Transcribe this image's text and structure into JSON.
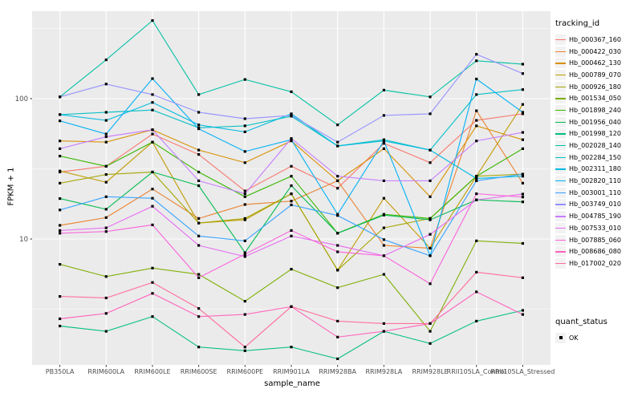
{
  "chart_data": {
    "type": "line",
    "title": "",
    "xlabel": "sample_name",
    "ylabel": "FPKM + 1",
    "y_scale": "log10",
    "y_tick_labels": [
      "100",
      "10"
    ],
    "y_ticks": [
      100,
      10
    ],
    "y_minor_gridlines": [
      316.2,
      31.62,
      3.162
    ],
    "ylim": [
      1.27,
      420
    ],
    "grid": "on",
    "panel_background": "#EBEBEB",
    "gridline_color": "#FFFFFF",
    "axis_text_color": "#4D4D4D",
    "tick_mark_color": "#333333",
    "point_shape": "square",
    "point_color": "#000000",
    "categories": [
      "PB350LA",
      "RRIM600LA",
      "RRIM600LE",
      "RRIM600SE",
      "RRIM600PE",
      "RRIM901LA",
      "RRIM928BA",
      "RRIM928LA",
      "RRIM928LE",
      "RRII105LA_Control",
      "RRII105LA_Stressed"
    ],
    "legend_position": "right",
    "series": [
      {
        "name": "Hb_000367_160",
        "color": "#F8766D",
        "values": [
          30,
          33,
          56,
          40,
          22,
          33,
          23,
          48,
          35,
          70,
          78
        ]
      },
      {
        "name": "Hb_000422_030",
        "color": "#EA8331",
        "values": [
          12.5,
          14.2,
          22.7,
          14,
          17.6,
          18.6,
          26,
          9,
          8.6,
          82,
          25
        ]
      },
      {
        "name": "Hb_000462_130",
        "color": "#D89000",
        "values": [
          50,
          49,
          60,
          43,
          35,
          50,
          26,
          44,
          20,
          64,
          51
        ]
      },
      {
        "name": "Hb_000789_070",
        "color": "#C09B00",
        "values": [
          30.5,
          25.4,
          49,
          13,
          13.7,
          21,
          6,
          19.5,
          8.6,
          28,
          91
        ]
      },
      {
        "name": "Hb_000926_180",
        "color": "#A3A500",
        "values": [
          25,
          28.8,
          30,
          13,
          14,
          21,
          6,
          12,
          14,
          28,
          29
        ]
      },
      {
        "name": "Hb_001534_050",
        "color": "#7CAE00",
        "values": [
          6.6,
          5.4,
          6.2,
          5.6,
          3.6,
          6.1,
          4.5,
          5.6,
          2.2,
          9.7,
          9.3
        ]
      },
      {
        "name": "Hb_001898_240",
        "color": "#39B600",
        "values": [
          39,
          33,
          49,
          30,
          20,
          28,
          11,
          15,
          14,
          28,
          44
        ]
      },
      {
        "name": "Hb_001956_040",
        "color": "#00BB4E",
        "values": [
          19.4,
          16.3,
          30,
          24,
          8,
          24,
          11,
          14.8,
          13.7,
          19,
          18.4
        ]
      },
      {
        "name": "Hb_001998_120",
        "color": "#00BF7D",
        "values": [
          2.4,
          2.2,
          2.8,
          1.7,
          1.6,
          1.7,
          1.4,
          2.2,
          1.8,
          2.6,
          3.1
        ]
      },
      {
        "name": "Hb_002028_140",
        "color": "#00C1A3",
        "values": [
          103,
          189,
          360,
          107,
          137,
          112,
          65,
          115,
          103,
          186,
          176
        ]
      },
      {
        "name": "Hb_002284_150",
        "color": "#00BFC4",
        "values": [
          77,
          80,
          83,
          62,
          64,
          75,
          46,
          51,
          43,
          107,
          116
        ]
      },
      {
        "name": "Hb_002311_180",
        "color": "#00BAE0",
        "values": [
          77,
          70,
          94,
          65,
          58,
          78,
          46,
          50,
          43,
          27,
          28
        ]
      },
      {
        "name": "Hb_002820_110",
        "color": "#00B0F6",
        "values": [
          69.5,
          56,
          139,
          61,
          42,
          51,
          15,
          50,
          7.6,
          138,
          80
        ]
      },
      {
        "name": "Hb_003001_110",
        "color": "#35A2FF",
        "values": [
          16.1,
          20,
          19.5,
          10.5,
          9.7,
          17.5,
          14.7,
          9.9,
          7.6,
          26,
          29
        ]
      },
      {
        "name": "Hb_003749_010",
        "color": "#9590FF",
        "values": [
          103,
          127,
          107,
          80,
          72,
          76,
          49,
          76,
          78,
          207,
          151
        ]
      },
      {
        "name": "Hb_004785_190",
        "color": "#C77CFF",
        "values": [
          44,
          53.5,
          60,
          26,
          21,
          52,
          28,
          26,
          26,
          50,
          57.5
        ]
      },
      {
        "name": "Hb_007533_010",
        "color": "#E76BF3",
        "values": [
          11.5,
          12,
          17.1,
          9,
          7.5,
          10.5,
          9,
          7.6,
          10.8,
          19,
          20.9
        ]
      },
      {
        "name": "Hb_007885_060",
        "color": "#FA62DB",
        "values": [
          11,
          11.3,
          12.6,
          5.3,
          7.8,
          11.5,
          8.1,
          7.6,
          4.8,
          21,
          19.9
        ]
      },
      {
        "name": "Hb_008686_080",
        "color": "#FF62BC",
        "values": [
          2.7,
          2.95,
          4.1,
          2.8,
          2.9,
          3.3,
          2.0,
          2.2,
          2.5,
          4.2,
          2.9
        ]
      },
      {
        "name": "Hb_017002_020",
        "color": "#FF6A98",
        "values": [
          3.9,
          3.8,
          4.9,
          3.2,
          1.7,
          3.3,
          2.6,
          2.5,
          2.5,
          5.8,
          5.3
        ]
      }
    ],
    "legend": {
      "title": "tracking_id"
    },
    "legend2": {
      "title": "quant_status",
      "items": [
        {
          "label": "OK",
          "marker": "black-square"
        }
      ]
    }
  }
}
